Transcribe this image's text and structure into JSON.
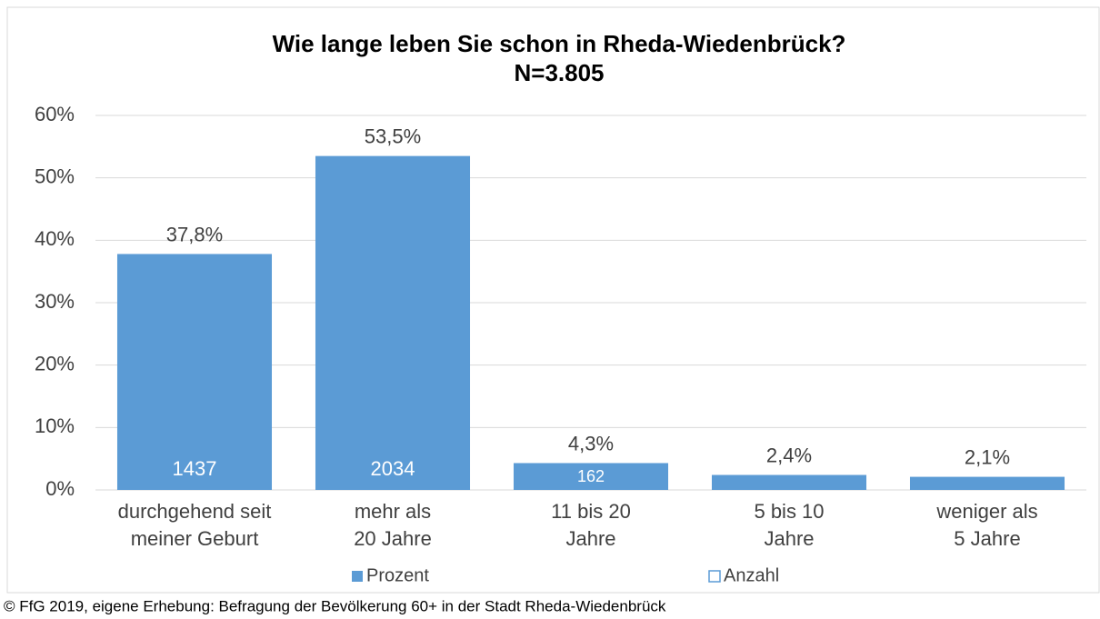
{
  "chart_data": {
    "type": "bar",
    "title": [
      "Wie lange leben Sie schon in Rheda-Wiedenbrück?",
      "N=3.805"
    ],
    "categories": [
      [
        "durchgehend seit",
        "meiner Geburt"
      ],
      [
        "mehr als",
        "20 Jahre"
      ],
      [
        "11 bis 20",
        "Jahre"
      ],
      [
        "5 bis 10",
        "Jahre"
      ],
      [
        "weniger als",
        "5 Jahre"
      ]
    ],
    "series": [
      {
        "name": "Prozent",
        "color": "#5b9bd5",
        "values": [
          37.8,
          53.5,
          4.3,
          2.4,
          2.1
        ],
        "value_labels": [
          "37,8%",
          "53,5%",
          "4,3%",
          "2,4%",
          "2,1%"
        ]
      },
      {
        "name": "Anzahl",
        "color": "#5b9bd5",
        "values": [
          1437,
          2034,
          162,
          null,
          null
        ]
      }
    ],
    "ylim": [
      0,
      60
    ],
    "yticks": [
      {
        "value": 0,
        "label": "0%"
      },
      {
        "value": 10,
        "label": "10%"
      },
      {
        "value": 20,
        "label": "20%"
      },
      {
        "value": 30,
        "label": "30%"
      },
      {
        "value": 40,
        "label": "40%"
      },
      {
        "value": 50,
        "label": "50%"
      },
      {
        "value": 60,
        "label": "60%"
      }
    ],
    "grid": true,
    "legend": "bottom",
    "source": "© FfG 2019, eigene Erhebung: Befragung der Bevölkerung 60+ in der Stadt Rheda-Wiedenbrück"
  }
}
